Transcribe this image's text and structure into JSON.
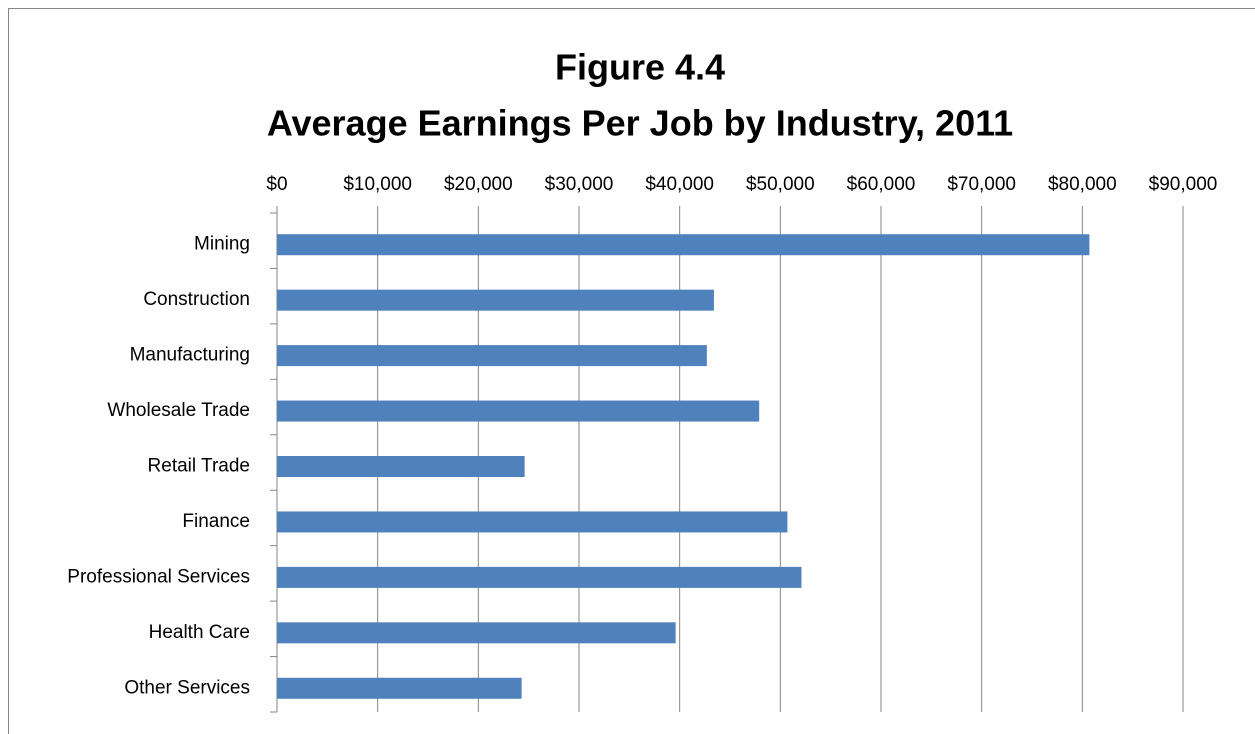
{
  "chart_data": {
    "type": "bar",
    "orientation": "horizontal",
    "title": "Figure 4.4",
    "subtitle": "Average Earnings Per Job by Industry, 2011",
    "categories": [
      "Mining",
      "Construction",
      "Manufacturing",
      "Wholesale Trade",
      "Retail Trade",
      "Finance",
      "Professional Services",
      "Health Care",
      "Other Services"
    ],
    "values": [
      80700,
      43400,
      42700,
      47900,
      24600,
      50700,
      52100,
      39600,
      24300
    ],
    "color": "#4f81bd",
    "xlim": [
      0,
      90000
    ],
    "xticks": [
      {
        "value": 0,
        "label": "$0"
      },
      {
        "value": 10000,
        "label": "$10,000"
      },
      {
        "value": 20000,
        "label": "$20,000"
      },
      {
        "value": 30000,
        "label": "$30,000"
      },
      {
        "value": 40000,
        "label": "$40,000"
      },
      {
        "value": 50000,
        "label": "$50,000"
      },
      {
        "value": 60000,
        "label": "$60,000"
      },
      {
        "value": 70000,
        "label": "$70,000"
      },
      {
        "value": 80000,
        "label": "$80,000"
      },
      {
        "value": 90000,
        "label": "$90,000"
      }
    ],
    "grid": true
  }
}
